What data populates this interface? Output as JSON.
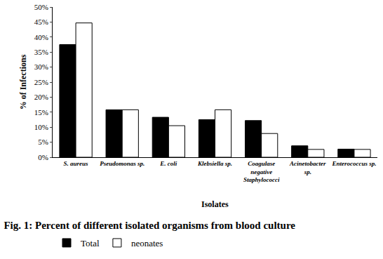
{
  "chart_data": {
    "type": "bar",
    "title": "Fig. 1: Percent of different isolated organisms from blood culture",
    "x_label": "Isolates",
    "y_label": "% of Infections",
    "categories": [
      "S. aureus",
      "Pseudomonas sp.",
      "E. coli",
      "Klebsiella sp.",
      "Coagulase negative Staphylococci",
      "Acinetobacter sp.",
      "Enterococcus sp."
    ],
    "series": [
      {
        "name": "Total",
        "color": "#000000",
        "values": [
          37.5,
          15.8,
          13.3,
          12.5,
          12.2,
          3.8,
          2.7
        ]
      },
      {
        "name": "neonates",
        "color": "#ffffff",
        "values": [
          44.7,
          15.8,
          10.5,
          15.8,
          7.9,
          2.6,
          2.6
        ]
      }
    ],
    "ylim": [
      0,
      50
    ],
    "yticks": [
      {
        "value": 0,
        "label": "0%"
      },
      {
        "value": 5,
        "label": "5%"
      },
      {
        "value": 10,
        "label": "10%"
      },
      {
        "value": 15,
        "label": "15%"
      },
      {
        "value": 20,
        "label": "20%"
      },
      {
        "value": 25,
        "label": "25%"
      },
      {
        "value": 30,
        "label": "30%"
      },
      {
        "value": 35,
        "label": "35%"
      },
      {
        "value": 40,
        "label": "40%"
      },
      {
        "value": 45,
        "label": "45%"
      },
      {
        "value": 50,
        "label": "50%"
      }
    ],
    "grid": false,
    "legend": "bottom left"
  }
}
